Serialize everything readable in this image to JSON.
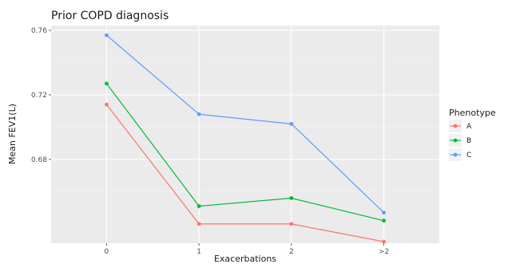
{
  "chart_data": {
    "type": "line",
    "title": "Prior COPD diagnosis",
    "xlabel": "Exacerbations",
    "ylabel": "Mean FEV1(L)",
    "categories": [
      "0",
      "1",
      "2",
      ">2"
    ],
    "y_ticks": [
      "0.68",
      "0.72",
      "0.76"
    ],
    "ylim": [
      0.628,
      0.763
    ],
    "grid": true,
    "legend": {
      "title": "Phenotype",
      "position": "right"
    },
    "series": [
      {
        "name": "A",
        "color": "#F8766D",
        "values": [
          0.714,
          0.64,
          0.64,
          0.629
        ]
      },
      {
        "name": "B",
        "color": "#00BA38",
        "values": [
          0.727,
          0.651,
          0.656,
          0.642
        ]
      },
      {
        "name": "C",
        "color": "#619CFF",
        "values": [
          0.757,
          0.708,
          0.702,
          0.647
        ]
      }
    ]
  }
}
